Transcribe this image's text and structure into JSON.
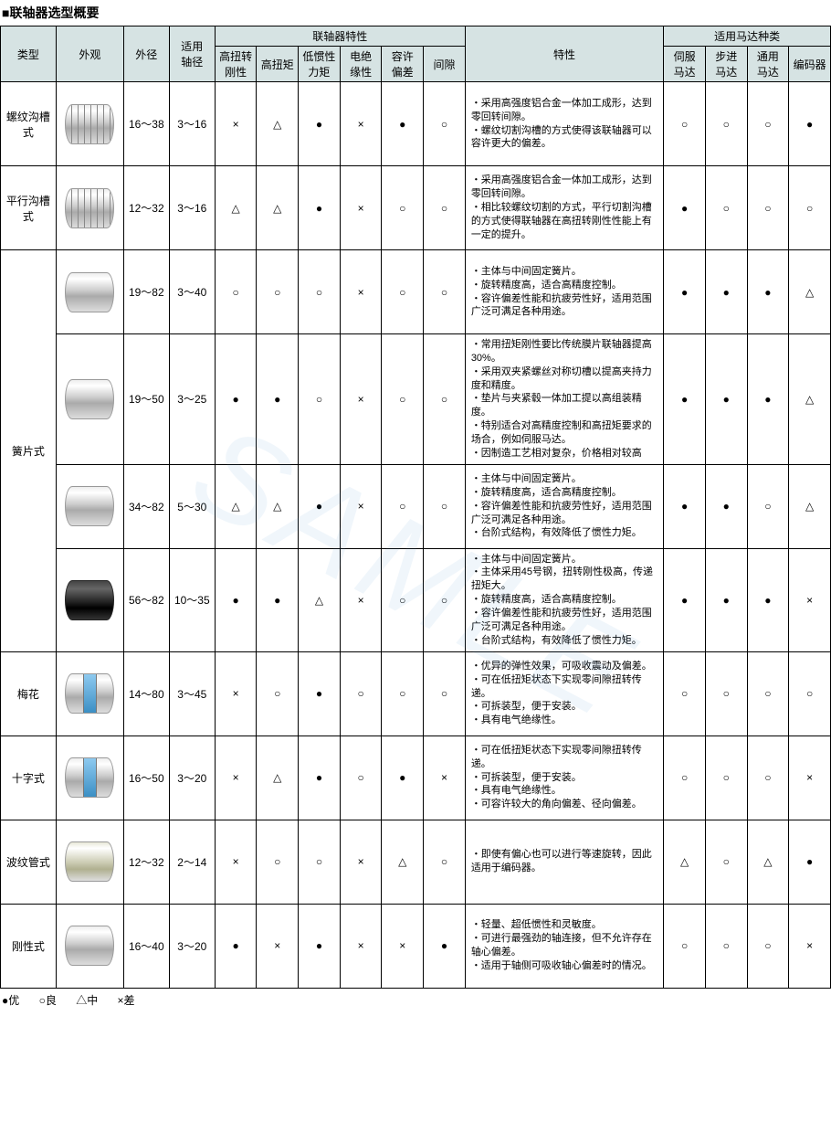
{
  "title": "■联轴器选型概要",
  "legend": {
    "l1": "●优",
    "l2": "○良",
    "l3": "△中",
    "l4": "×差"
  },
  "watermark": "SAMLE",
  "header": {
    "type": "类型",
    "appearance": "外观",
    "diameter": "外径",
    "bore": "适用\n轴径",
    "charGroup": "联轴器特性",
    "c1": "高扭转\n刚性",
    "c2": "高扭矩",
    "c3": "低惯性\n力矩",
    "c4": "电绝\n缘性",
    "c5": "容许\n偏差",
    "c6": "间隙",
    "feat": "特性",
    "motorGroup": "适用马达种类",
    "m1": "伺服\n马达",
    "m2": "步进\n马达",
    "m3": "通用\n马达",
    "m4": "编码器"
  },
  "rows": [
    {
      "type": "螺纹沟槽式",
      "imgClass": "slots",
      "diameter": "16～38",
      "bore": "3～16",
      "c": [
        "×",
        "△",
        "●",
        "×",
        "●",
        "○"
      ],
      "feat": [
        "・采用高强度铝合金一体加工成形，达到零回转间隙。",
        "・螺纹切割沟槽的方式使得该联轴器可以容许更大的偏差。"
      ],
      "m": [
        "○",
        "○",
        "○",
        "●"
      ]
    },
    {
      "type": "平行沟槽式",
      "imgClass": "slots",
      "diameter": "12～32",
      "bore": "3～16",
      "c": [
        "△",
        "△",
        "●",
        "×",
        "○",
        "○"
      ],
      "feat": [
        "・采用高强度铝合金一体加工成形，达到零回转间隙。",
        "・相比较螺纹切割的方式，平行切割沟槽的方式使得联轴器在高扭转刚性性能上有一定的提升。"
      ],
      "m": [
        "●",
        "○",
        "○",
        "○"
      ]
    },
    {
      "type": "",
      "group": "簧片式",
      "imgClass": "",
      "diameter": "19～82",
      "bore": "3～40",
      "c": [
        "○",
        "○",
        "○",
        "×",
        "○",
        "○"
      ],
      "feat": [
        "・主体与中间固定簧片。",
        "・旋转精度高，适合高精度控制。",
        "・容许偏差性能和抗疲劳性好，适用范围广泛可满足各种用途。"
      ],
      "m": [
        "●",
        "●",
        "●",
        "△"
      ]
    },
    {
      "type": "",
      "imgClass": "",
      "diameter": "19～50",
      "bore": "3～25",
      "c": [
        "●",
        "●",
        "○",
        "×",
        "○",
        "○"
      ],
      "feat": [
        "・常用扭矩刚性要比传统膜片联轴器提高30%。",
        "・采用双夹紧螺丝对称切槽以提高夹持力度和精度。",
        "・垫片与夹紧毂一体加工提以高组装精度。",
        "・特别适合对高精度控制和高扭矩要求的场合，例如伺服马达。",
        "・因制造工艺相对复杂，价格相对较高"
      ],
      "m": [
        "●",
        "●",
        "●",
        "△"
      ]
    },
    {
      "type": "",
      "imgClass": "",
      "diameter": "34～82",
      "bore": "5～30",
      "c": [
        "△",
        "△",
        "●",
        "×",
        "○",
        "○"
      ],
      "feat": [
        "・主体与中间固定簧片。",
        "・旋转精度高，适合高精度控制。",
        "・容许偏差性能和抗疲劳性好，适用范围广泛可满足各种用途。",
        "・台阶式结构，有效降低了惯性力矩。"
      ],
      "m": [
        "●",
        "●",
        "○",
        "△"
      ]
    },
    {
      "type": "",
      "imgClass": "dark",
      "diameter": "56～82",
      "bore": "10～35",
      "c": [
        "●",
        "●",
        "△",
        "×",
        "○",
        "○"
      ],
      "feat": [
        "・主体与中间固定簧片。",
        "・主体采用45号钢，扭转刚性极高，传递扭矩大。",
        "・旋转精度高，适合高精度控制。",
        "・容许偏差性能和抗疲劳性好，适用范围广泛可满足各种用途。",
        "・台阶式结构，有效降低了惯性力矩。"
      ],
      "m": [
        "●",
        "●",
        "●",
        "×"
      ]
    },
    {
      "type": "梅花",
      "imgClass": "blue-mid",
      "diameter": "14～80",
      "bore": "3～45",
      "c": [
        "×",
        "○",
        "●",
        "○",
        "○",
        "○"
      ],
      "feat": [
        "・优异的弹性效果，可吸收震动及偏差。",
        "・可在低扭矩状态下实现零间隙扭转传递。",
        "・可拆装型，便于安装。",
        "・具有电气绝缘性。"
      ],
      "m": [
        "○",
        "○",
        "○",
        "○"
      ]
    },
    {
      "type": "十字式",
      "imgClass": "blue-mid",
      "diameter": "16～50",
      "bore": "3～20",
      "c": [
        "×",
        "△",
        "●",
        "○",
        "●",
        "×"
      ],
      "feat": [
        "・可在低扭矩状态下实现零间隙扭转传递。",
        "・可拆装型，便于安装。",
        "・具有电气绝缘性。",
        "・可容许较大的角向偏差、径向偏差。"
      ],
      "m": [
        "○",
        "○",
        "○",
        "×"
      ]
    },
    {
      "type": "波纹管式",
      "imgClass": "bell",
      "diameter": "12～32",
      "bore": "2～14",
      "c": [
        "×",
        "○",
        "○",
        "×",
        "△",
        "○"
      ],
      "feat": [
        "・即使有偏心也可以进行等速旋转，因此适用于编码器。"
      ],
      "m": [
        "△",
        "○",
        "△",
        "●"
      ]
    },
    {
      "type": "刚性式",
      "imgClass": "",
      "diameter": "16～40",
      "bore": "3～20",
      "c": [
        "●",
        "×",
        "●",
        "×",
        "×",
        "●"
      ],
      "feat": [
        "・轻量、超低惯性和灵敏度。",
        "・可进行最强劲的轴连接，但不允许存在轴心偏差。",
        "・适用于轴侧可吸收轴心偏差时的情况。"
      ],
      "m": [
        "○",
        "○",
        "○",
        "×"
      ]
    }
  ]
}
